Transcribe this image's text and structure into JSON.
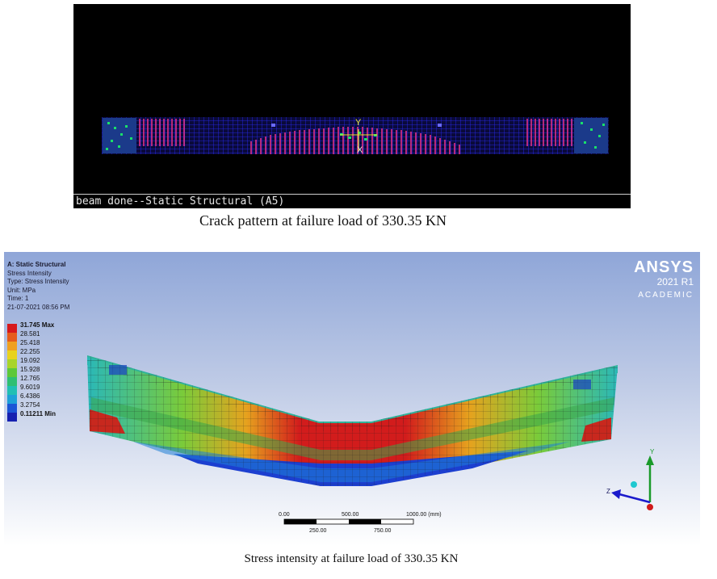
{
  "top_panel": {
    "status_text": "beam done--Static Structural (A5)",
    "axis_y": "Y",
    "axis_x": "X",
    "caption": "Crack pattern at failure load of 330.35 KN"
  },
  "bottom_panel": {
    "info": {
      "title": "A: Static Structural",
      "line1": "Stress Intensity",
      "line2": "Type: Stress Intensity",
      "line3": "Unit: MPa",
      "line4": "Time: 1",
      "line5": "21-07-2021 08:56 PM"
    },
    "legend": [
      {
        "label": "31.745 Max",
        "color": "#d7191c"
      },
      {
        "label": "28.581",
        "color": "#e65c1c"
      },
      {
        "label": "25.418",
        "color": "#f0a020"
      },
      {
        "label": "22.255",
        "color": "#e8d21e"
      },
      {
        "label": "19.092",
        "color": "#a8d42a"
      },
      {
        "label": "15.928",
        "color": "#5cc83a"
      },
      {
        "label": "12.765",
        "color": "#2ebf73"
      },
      {
        "label": "9.6019",
        "color": "#20bfb4"
      },
      {
        "label": "6.4386",
        "color": "#1da0d8"
      },
      {
        "label": "3.2754",
        "color": "#1a55d6"
      },
      {
        "label": "0.11211 Min",
        "color": "#1520b0"
      }
    ],
    "logo": {
      "brand": "ANSYS",
      "version": "2021 R1",
      "edition": "ACADEMIC"
    },
    "scale": {
      "v0": "0.00",
      "v1": "500.00",
      "v2": "1000.00 (mm)",
      "v3": "250.00",
      "v4": "750.00"
    },
    "triad": {
      "y": "Y",
      "z": "Z"
    },
    "caption": "Stress intensity at failure load of 330.35 KN"
  }
}
